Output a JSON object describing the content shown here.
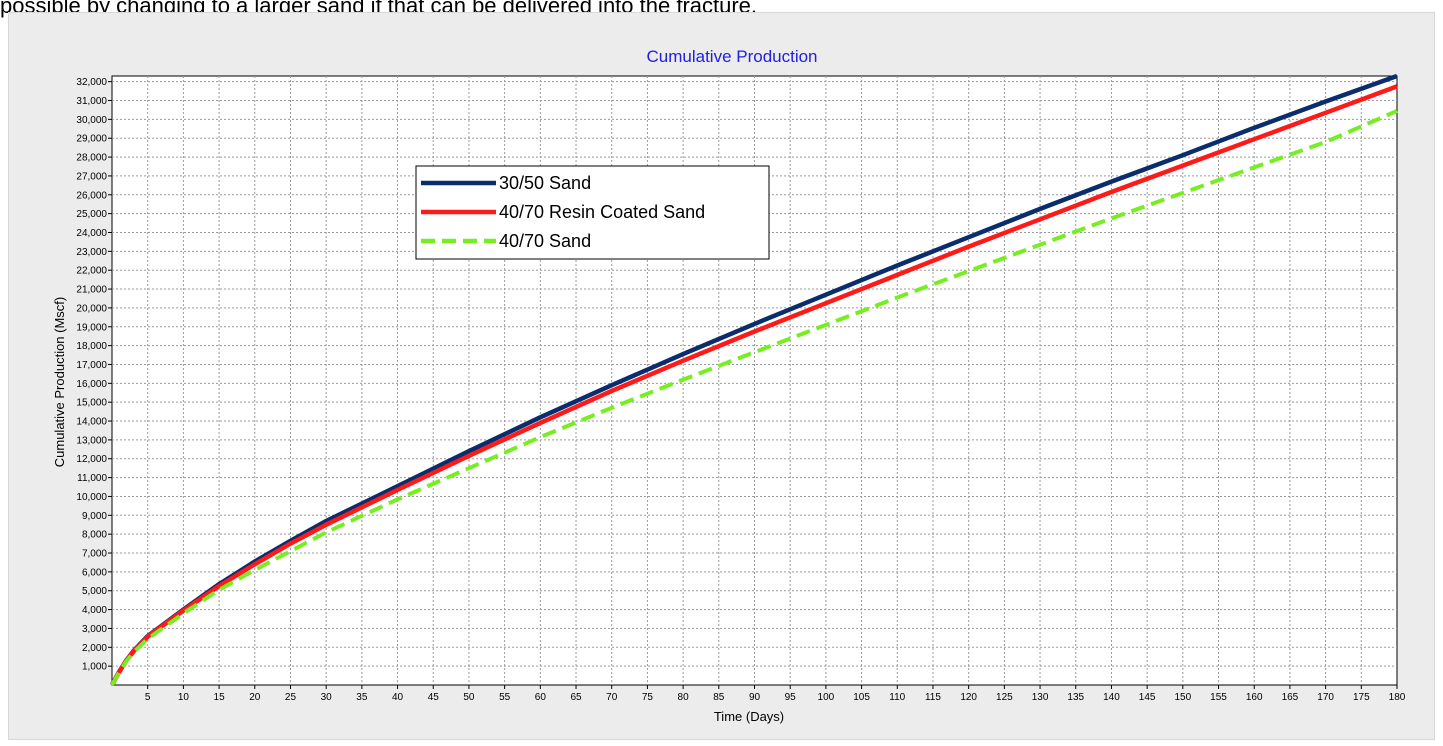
{
  "page": {
    "caption": "possible by changing to a larger sand if that can be delivered into the fracture."
  },
  "chart_data": {
    "type": "line",
    "title": "Cumulative Production",
    "xlabel": "Time (Days)",
    "ylabel": "Cumulative  Production (Mscf)",
    "xlim": [
      0,
      180
    ],
    "ylim": [
      0,
      32300
    ],
    "x_ticks": [
      5,
      10,
      15,
      20,
      25,
      30,
      35,
      40,
      45,
      50,
      55,
      60,
      65,
      70,
      75,
      80,
      85,
      90,
      95,
      100,
      105,
      110,
      115,
      120,
      125,
      130,
      135,
      140,
      145,
      150,
      155,
      160,
      165,
      170,
      175,
      180
    ],
    "y_ticks": [
      1000,
      2000,
      3000,
      4000,
      5000,
      6000,
      7000,
      8000,
      9000,
      10000,
      11000,
      12000,
      13000,
      14000,
      15000,
      16000,
      17000,
      18000,
      19000,
      20000,
      21000,
      22000,
      23000,
      24000,
      25000,
      26000,
      27000,
      28000,
      29000,
      30000,
      31000,
      32000
    ],
    "y_tick_labels": [
      "1,000",
      "2,000",
      "3,000",
      "4,000",
      "5,000",
      "6,000",
      "7,000",
      "8,000",
      "9,000",
      "10,000",
      "11,000",
      "12,000",
      "13,000",
      "14,000",
      "15,000",
      "16,000",
      "17,000",
      "18,000",
      "19,000",
      "20,000",
      "21,000",
      "22,000",
      "23,000",
      "24,000",
      "25,000",
      "26,000",
      "27,000",
      "28,000",
      "29,000",
      "30,000",
      "31,000",
      "32,000"
    ],
    "grid": true,
    "legend_position": "upper-left",
    "x": [
      0,
      1,
      2,
      3,
      5,
      10,
      15,
      20,
      25,
      30,
      40,
      50,
      60,
      70,
      80,
      90,
      100,
      110,
      120,
      130,
      140,
      150,
      160,
      170,
      180
    ],
    "series": [
      {
        "name": "30/50 Sand",
        "color": "#0a2d6e",
        "style": "solid",
        "values": [
          0,
          700,
          1300,
          1800,
          2600,
          4000,
          5350,
          6550,
          7650,
          8700,
          10550,
          12400,
          14200,
          15900,
          17550,
          19150,
          20700,
          22250,
          23750,
          25250,
          26700,
          28100,
          29550,
          30950,
          32300
        ]
      },
      {
        "name": "40/70 Resin Coated Sand",
        "color": "#ff1a1a",
        "style": "solid",
        "values": [
          0,
          690,
          1280,
          1770,
          2560,
          3950,
          5250,
          6400,
          7500,
          8500,
          10350,
          12150,
          13900,
          15600,
          17200,
          18750,
          20250,
          21750,
          23250,
          24700,
          26150,
          27550,
          28950,
          30350,
          31750
        ]
      },
      {
        "name": "40/70 Sand",
        "color": "#77ee22",
        "style": "dashed",
        "values": [
          0,
          670,
          1250,
          1720,
          2450,
          3800,
          5050,
          6100,
          7100,
          8100,
          9850,
          11500,
          13150,
          14700,
          16200,
          17650,
          19100,
          20550,
          21950,
          23350,
          24750,
          26100,
          27450,
          28800,
          30450
        ]
      }
    ]
  }
}
